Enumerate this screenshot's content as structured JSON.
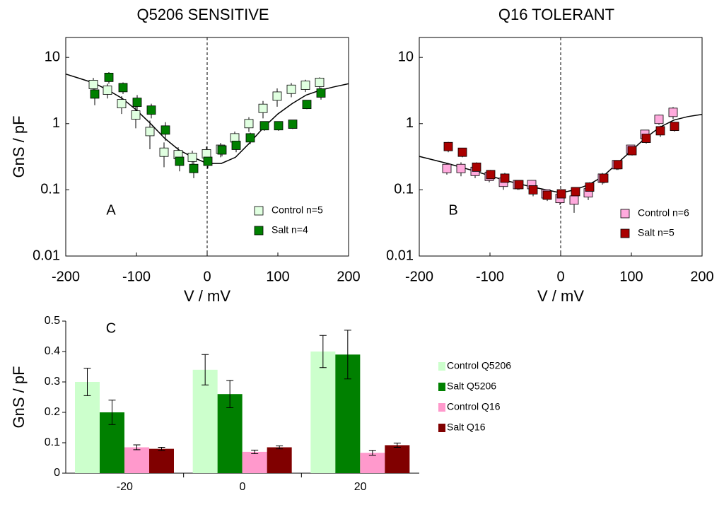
{
  "chart_data": [
    {
      "type": "scatter",
      "title": "Q5206  SENSITIVE",
      "xlabel": "V / mV",
      "ylabel": "GnS / pF",
      "annotation": "A",
      "log_y": true,
      "frame": true,
      "vline": 0,
      "legend": "lower right",
      "xlim": [
        -200,
        200
      ],
      "xticks": [
        -200,
        -100,
        0,
        100,
        200
      ],
      "ylim": [
        0.01,
        20
      ],
      "yticks": [
        0.01,
        0.1,
        1,
        10
      ],
      "x": [
        -160,
        -140,
        -120,
        -100,
        -80,
        -60,
        -40,
        -20,
        0,
        20,
        40,
        60,
        80,
        100,
        120,
        140,
        160
      ],
      "series": [
        {
          "name": "Control n=5",
          "color": "#e0ffe0",
          "values": [
            3.9,
            3.2,
            2.0,
            1.35,
            0.76,
            0.37,
            0.34,
            0.31,
            0.35,
            0.41,
            0.61,
            1.0,
            1.7,
            2.6,
            3.3,
            3.8,
            4.2
          ],
          "errors": [
            1.0,
            0.8,
            0.6,
            0.5,
            0.35,
            0.15,
            0.1,
            0.08,
            0.1,
            0.1,
            0.15,
            0.25,
            0.5,
            0.8,
            0.8,
            0.8,
            0.8
          ]
        },
        {
          "name": "Salt n=4",
          "color": "#008000",
          "values": [
            2.8,
            5.0,
            3.5,
            2.1,
            1.6,
            0.8,
            0.27,
            0.21,
            0.27,
            0.4,
            0.47,
            0.61,
            0.93,
            0.93,
            0.98,
            1.95,
            2.9
          ],
          "errors": [
            0.9,
            1.0,
            0.7,
            0.6,
            0.4,
            0.25,
            0.08,
            0.06,
            0.06,
            0.08,
            0.1,
            0.12,
            0.15,
            0.15,
            0.15,
            0.3,
            0.6
          ]
        }
      ],
      "fit": {
        "x": [
          -200,
          -180,
          -160,
          -140,
          -120,
          -100,
          -80,
          -60,
          -40,
          -20,
          0,
          20,
          40,
          60,
          80,
          100,
          120,
          140,
          160,
          180,
          200
        ],
        "values": [
          5.6,
          4.8,
          4.1,
          3.2,
          2.4,
          1.6,
          1.0,
          0.6,
          0.4,
          0.31,
          0.25,
          0.25,
          0.31,
          0.51,
          0.88,
          1.4,
          2.0,
          2.7,
          3.2,
          3.6,
          4.0
        ]
      }
    },
    {
      "type": "scatter",
      "title": "Q16  TOLERANT",
      "xlabel": "V / mV",
      "annotation": "B",
      "log_y": true,
      "frame": true,
      "vline": 0,
      "legend": "lower right",
      "xlim": [
        -200,
        200
      ],
      "xticks": [
        -200,
        -100,
        0,
        100,
        200
      ],
      "ylim": [
        0.01,
        20
      ],
      "yticks": [
        0.01,
        0.1,
        1,
        10
      ],
      "x": [
        -160,
        -140,
        -120,
        -100,
        -80,
        -60,
        -40,
        -20,
        0,
        20,
        40,
        60,
        80,
        100,
        120,
        140,
        160
      ],
      "series": [
        {
          "name": "Control n=6",
          "color": "#ffaadd",
          "values": [
            0.21,
            0.21,
            0.19,
            0.16,
            0.13,
            0.12,
            0.12,
            0.087,
            0.074,
            0.07,
            0.09,
            0.15,
            0.24,
            0.41,
            0.69,
            1.16,
            1.48
          ],
          "errors": [
            0.04,
            0.05,
            0.04,
            0.03,
            0.03,
            0.02,
            0.02,
            0.015,
            0.015,
            0.025,
            0.02,
            0.03,
            0.04,
            0.06,
            0.1,
            0.2,
            0.3
          ]
        },
        {
          "name": "Salt n=5",
          "color": "#aa0000",
          "values": [
            0.45,
            0.37,
            0.22,
            0.17,
            0.15,
            0.12,
            0.1,
            0.083,
            0.087,
            0.094,
            0.11,
            0.15,
            0.24,
            0.39,
            0.6,
            0.78,
            0.91
          ],
          "errors": [
            0.08,
            0.06,
            0.04,
            0.03,
            0.03,
            0.02,
            0.02,
            0.015,
            0.015,
            0.015,
            0.02,
            0.025,
            0.04,
            0.06,
            0.1,
            0.15,
            0.15
          ]
        }
      ],
      "fit": {
        "x": [
          -200,
          -160,
          -120,
          -80,
          -40,
          -20,
          0,
          20,
          40,
          60,
          80,
          100,
          120,
          140,
          160,
          180,
          200
        ],
        "values": [
          0.32,
          0.25,
          0.19,
          0.14,
          0.11,
          0.1,
          0.09,
          0.1,
          0.12,
          0.16,
          0.25,
          0.39,
          0.61,
          0.88,
          1.13,
          1.28,
          1.38
        ]
      }
    },
    {
      "type": "bar",
      "ylabel": "GnS / pF",
      "annotation": "C",
      "frame": false,
      "legend": "right",
      "ylim": [
        0,
        0.5
      ],
      "yticks": [
        0,
        0.1,
        0.2,
        0.3,
        0.4,
        0.5
      ],
      "categories": [
        "-20",
        "0",
        "20"
      ],
      "series": [
        {
          "name": "Control Q5206",
          "color": "#ccffcc",
          "values": [
            0.3,
            0.34,
            0.4
          ],
          "errors": [
            0.045,
            0.05,
            0.053
          ]
        },
        {
          "name": "Salt Q5206",
          "color": "#008000",
          "values": [
            0.2,
            0.26,
            0.39
          ],
          "errors": [
            0.04,
            0.045,
            0.08
          ]
        },
        {
          "name": "Control Q16",
          "color": "#ff99cc",
          "values": [
            0.085,
            0.07,
            0.067
          ],
          "errors": [
            0.008,
            0.006,
            0.008
          ]
        },
        {
          "name": "Salt Q16",
          "color": "#800000",
          "values": [
            0.08,
            0.085,
            0.092
          ],
          "errors": [
            0.005,
            0.005,
            0.007
          ]
        }
      ]
    }
  ]
}
